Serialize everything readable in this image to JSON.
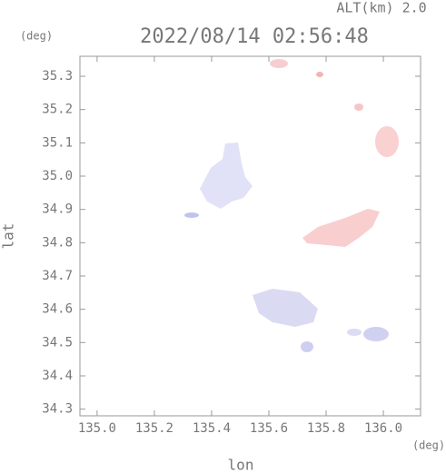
{
  "chart_data": {
    "type": "map",
    "title": "2022/08/14 02:56:48",
    "subtitle": "ALT(km) 2.0",
    "x_label": "lon",
    "y_label": "lat",
    "x_unit": "(deg)",
    "y_unit": "(deg)",
    "xlim": [
      134.94,
      136.13
    ],
    "ylim": [
      34.28,
      35.36
    ],
    "xticks": [
      {
        "value": 135,
        "label": "135.0"
      },
      135.2,
      135.4,
      135.6,
      135.8,
      {
        "value": 136,
        "label": "136.0"
      }
    ],
    "yticks": [
      34.3,
      34.4,
      34.5,
      34.6,
      34.7,
      34.8,
      34.9,
      {
        "value": 35,
        "label": "35.0"
      },
      35.1,
      35.2,
      35.3
    ]
  }
}
